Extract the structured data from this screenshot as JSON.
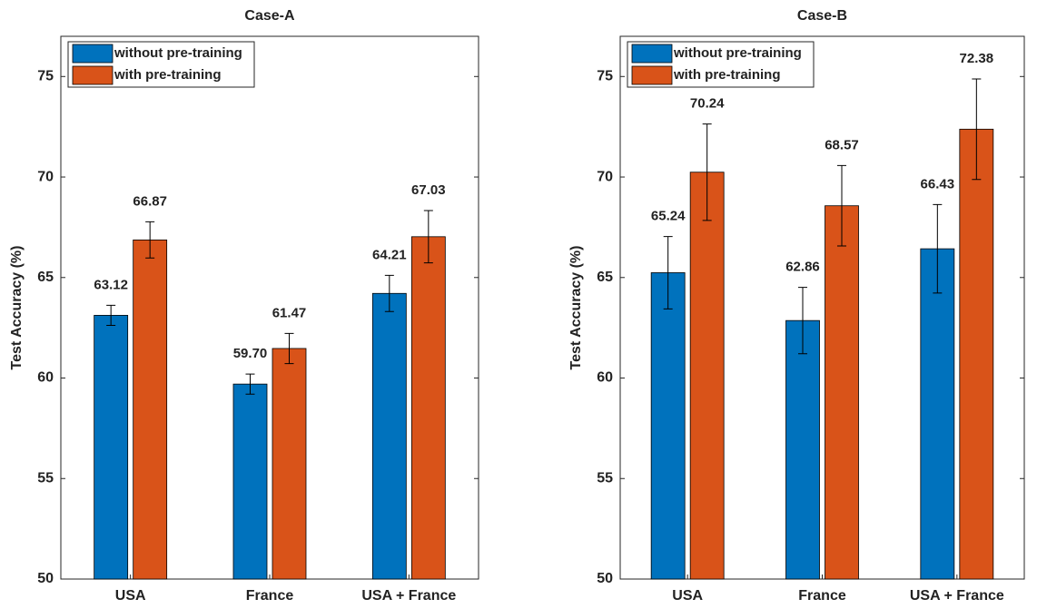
{
  "chart_data": [
    {
      "type": "bar",
      "title": "Case-A",
      "ylabel": "Test Accuracy (%)",
      "categories": [
        "USA",
        "France",
        "USA + France"
      ],
      "series": [
        {
          "name": "without pre-training",
          "color": "#0072bd",
          "values": [
            63.12,
            59.7,
            64.21
          ],
          "value_labels": [
            "63.12",
            "59.70",
            "64.21"
          ],
          "errors": [
            0.5,
            0.5,
            0.9
          ]
        },
        {
          "name": "with pre-training",
          "color": "#d95319",
          "values": [
            66.87,
            61.47,
            67.03
          ],
          "value_labels": [
            "66.87",
            "61.47",
            "67.03"
          ],
          "errors": [
            0.9,
            0.75,
            1.3
          ]
        }
      ],
      "ylim": [
        50,
        77
      ],
      "yticks": [
        50,
        55,
        60,
        65,
        70,
        75
      ],
      "legend": "upper left"
    },
    {
      "type": "bar",
      "title": "Case-B",
      "ylabel": "Test Accuracy (%)",
      "categories": [
        "USA",
        "France",
        "USA + France"
      ],
      "series": [
        {
          "name": "without pre-training",
          "color": "#0072bd",
          "values": [
            65.24,
            62.86,
            66.43
          ],
          "value_labels": [
            "65.24",
            "62.86",
            "66.43"
          ],
          "errors": [
            1.8,
            1.65,
            2.2
          ]
        },
        {
          "name": "with pre-training",
          "color": "#d95319",
          "values": [
            70.24,
            68.57,
            72.38
          ],
          "value_labels": [
            "70.24",
            "68.57",
            "72.38"
          ],
          "errors": [
            2.4,
            2.0,
            2.5
          ]
        }
      ],
      "ylim": [
        50,
        77
      ],
      "yticks": [
        50,
        55,
        60,
        65,
        70,
        75
      ],
      "legend": "upper left"
    }
  ]
}
